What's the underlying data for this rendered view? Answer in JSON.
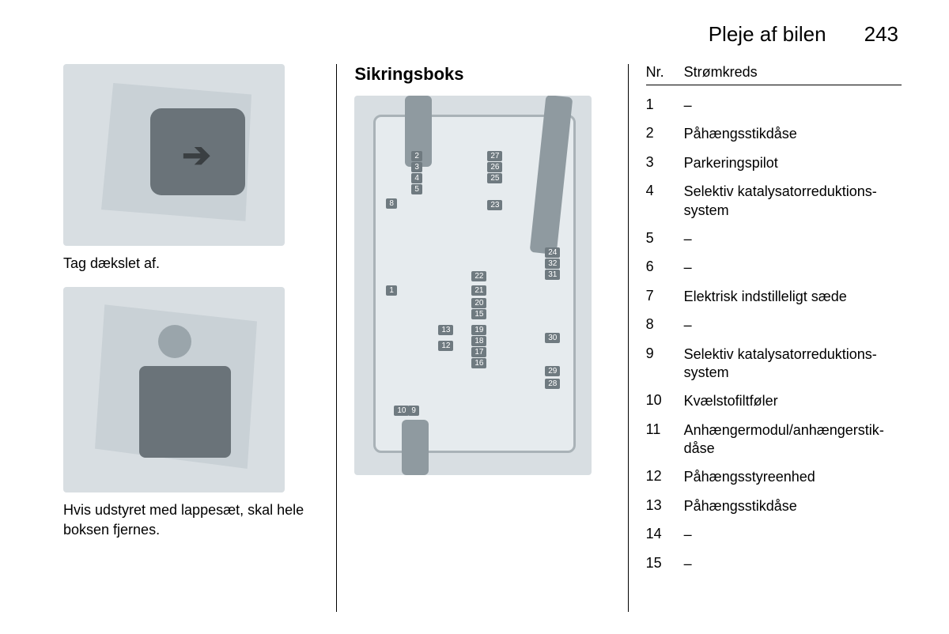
{
  "header": {
    "chapter_title": "Pleje af bilen",
    "page_number": "243"
  },
  "left_column": {
    "caption1": "Tag dækslet af.",
    "caption2": "Hvis udstyret med lappesæt, skal hele boksen fjernes."
  },
  "middle_column": {
    "heading": "Sikringsboks",
    "fuse_labels": [
      "1",
      "2",
      "3",
      "4",
      "5",
      "8",
      "9",
      "10",
      "12",
      "13",
      "15",
      "16",
      "17",
      "18",
      "19",
      "20",
      "21",
      "22",
      "23",
      "24",
      "25",
      "26",
      "27",
      "28",
      "29",
      "30",
      "31",
      "32"
    ]
  },
  "right_column": {
    "table_header_nr": "Nr.",
    "table_header_desc": "Strømkreds",
    "rows": [
      {
        "nr": "1",
        "desc": "–"
      },
      {
        "nr": "2",
        "desc": "Påhængsstikdåse"
      },
      {
        "nr": "3",
        "desc": "Parkeringspilot"
      },
      {
        "nr": "4",
        "desc": "Selektiv katalysatorreduktions­system"
      },
      {
        "nr": "5",
        "desc": "–"
      },
      {
        "nr": "6",
        "desc": "–"
      },
      {
        "nr": "7",
        "desc": "Elektrisk indstilleligt sæde"
      },
      {
        "nr": "8",
        "desc": "–"
      },
      {
        "nr": "9",
        "desc": "Selektiv katalysatorreduktions­system"
      },
      {
        "nr": "10",
        "desc": "Kvælstofiltføler"
      },
      {
        "nr": "11",
        "desc": "Anhængermodul/anhængerstik­dåse"
      },
      {
        "nr": "12",
        "desc": "Påhængsstyreenhed"
      },
      {
        "nr": "13",
        "desc": "Påhængsstikdåse"
      },
      {
        "nr": "14",
        "desc": "–"
      },
      {
        "nr": "15",
        "desc": "–"
      }
    ]
  },
  "colors": {
    "text": "#000000",
    "background": "#ffffff",
    "img_bg": "#d8dee2",
    "shape": "#7d868c"
  }
}
